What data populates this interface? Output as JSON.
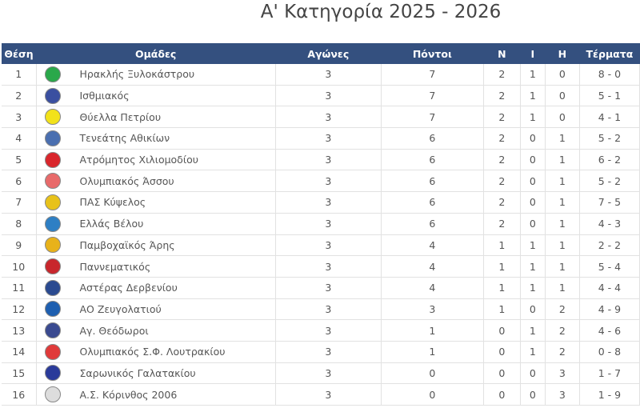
{
  "title": "Α' Κατηγορία 2025 - 2026",
  "headers": {
    "pos": "Θέση",
    "team": "Ομάδες",
    "played": "Αγώνες",
    "points": "Πόντοι",
    "w": "Ν",
    "d": "Ι",
    "l": "Η",
    "goals": "Τέρματα"
  },
  "rows": [
    {
      "pos": "1",
      "team": "Ηρακλής Ξυλοκάστρου",
      "played": "3",
      "points": "7",
      "w": "2",
      "d": "1",
      "l": "0",
      "goals": "8 - 0",
      "logo": "#2aa84a"
    },
    {
      "pos": "2",
      "team": "Ισθμιακός",
      "played": "3",
      "points": "7",
      "w": "2",
      "d": "1",
      "l": "0",
      "goals": "5 - 1",
      "logo": "#3a4fa0"
    },
    {
      "pos": "3",
      "team": "Θύελλα Πετρίου",
      "played": "3",
      "points": "7",
      "w": "2",
      "d": "1",
      "l": "0",
      "goals": "4 - 1",
      "logo": "#f2e21a"
    },
    {
      "pos": "4",
      "team": "Τενεάτης Αθικίων",
      "played": "3",
      "points": "6",
      "w": "2",
      "d": "0",
      "l": "1",
      "goals": "5 - 2",
      "logo": "#4a6fb0"
    },
    {
      "pos": "5",
      "team": "Ατρόμητος Χιλιομοδίου",
      "played": "3",
      "points": "6",
      "w": "2",
      "d": "0",
      "l": "1",
      "goals": "6 - 2",
      "logo": "#d9262c"
    },
    {
      "pos": "6",
      "team": "Ολυμπιακός Άσσου",
      "played": "3",
      "points": "6",
      "w": "2",
      "d": "0",
      "l": "1",
      "goals": "5 - 2",
      "logo": "#e86a6a"
    },
    {
      "pos": "7",
      "team": "ΠΑΣ Κύψελος",
      "played": "3",
      "points": "6",
      "w": "2",
      "d": "0",
      "l": "1",
      "goals": "7 - 5",
      "logo": "#e8c21a"
    },
    {
      "pos": "8",
      "team": "Ελλάς Βέλου",
      "played": "3",
      "points": "6",
      "w": "2",
      "d": "0",
      "l": "1",
      "goals": "4 - 3",
      "logo": "#2e7fc4"
    },
    {
      "pos": "9",
      "team": "Παμβοχαϊκός Άρης",
      "played": "3",
      "points": "4",
      "w": "1",
      "d": "1",
      "l": "1",
      "goals": "2 - 2",
      "logo": "#e8b21a"
    },
    {
      "pos": "10",
      "team": "Παννεματικός",
      "played": "3",
      "points": "4",
      "w": "1",
      "d": "1",
      "l": "1",
      "goals": "5 - 4",
      "logo": "#c8262c"
    },
    {
      "pos": "11",
      "team": "Αστέρας Δερβενίου",
      "played": "3",
      "points": "4",
      "w": "1",
      "d": "1",
      "l": "1",
      "goals": "4 - 4",
      "logo": "#2a4a90"
    },
    {
      "pos": "12",
      "team": "ΑΟ Ζευγολατιού",
      "played": "3",
      "points": "3",
      "w": "1",
      "d": "0",
      "l": "2",
      "goals": "4 - 9",
      "logo": "#1e5fb0"
    },
    {
      "pos": "13",
      "team": "Αγ. Θεόδωροι",
      "played": "3",
      "points": "1",
      "w": "0",
      "d": "1",
      "l": "2",
      "goals": "4 - 6",
      "logo": "#3a4a90"
    },
    {
      "pos": "14",
      "team": "Ολυμπιακός Σ.Φ. Λουτρακίου",
      "played": "3",
      "points": "1",
      "w": "0",
      "d": "1",
      "l": "2",
      "goals": "0 - 8",
      "logo": "#e03a3a"
    },
    {
      "pos": "15",
      "team": "Σαρωνικός Γαλατακίου",
      "played": "3",
      "points": "0",
      "w": "0",
      "d": "0",
      "l": "3",
      "goals": "1 - 7",
      "logo": "#2a3a9a"
    },
    {
      "pos": "16",
      "team": "Α.Σ. Κόρινθος 2006",
      "played": "3",
      "points": "0",
      "w": "0",
      "d": "0",
      "l": "3",
      "goals": "1 - 9",
      "logo": "#dddddd"
    }
  ]
}
